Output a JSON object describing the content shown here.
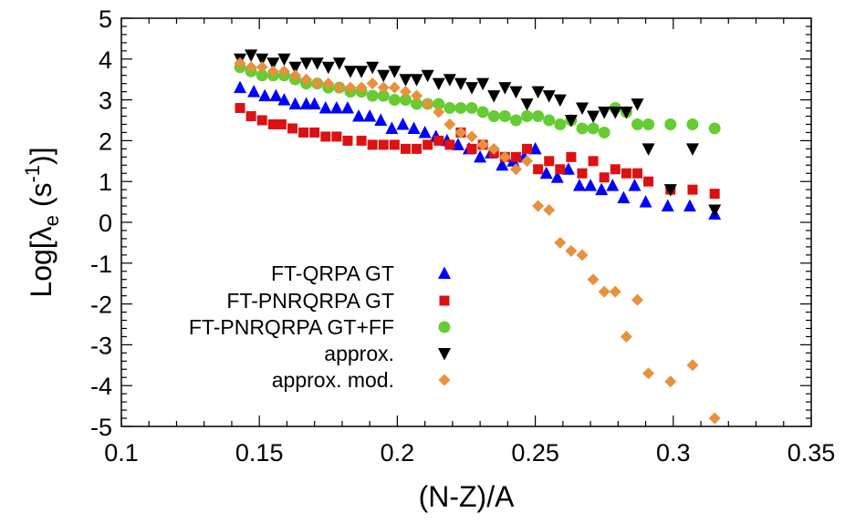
{
  "chart_data": {
    "type": "scatter",
    "title": "",
    "xlabel": "(N-Z)/A",
    "ylabel": "Log[λe (s-1)]",
    "ylabel_parts": {
      "prefix": "Log[",
      "symbol": "λ",
      "sub": "e",
      "mid": " (s",
      "sup": "-1",
      "suffix": ")]"
    },
    "xlim": [
      0.1,
      0.35
    ],
    "ylim": [
      -5,
      5
    ],
    "xticks": [
      "0.1",
      "0.15",
      "0.2",
      "0.25",
      "0.3",
      "0.35"
    ],
    "yticks": [
      "5",
      "4",
      "3",
      "2",
      "1",
      "0",
      "-1",
      "-2",
      "-3",
      "-4",
      "-5"
    ],
    "xtick_values": [
      0.1,
      0.15,
      0.2,
      0.25,
      0.3,
      0.35
    ],
    "ytick_values": [
      5,
      4,
      3,
      2,
      1,
      0,
      -1,
      -2,
      -3,
      -4,
      -5
    ],
    "legend_position": "lower-left",
    "series": [
      {
        "name": "FT-QRPA GT",
        "marker": "triangle-up",
        "color": "#0000ff",
        "x": [
          0.143,
          0.148,
          0.152,
          0.156,
          0.159,
          0.163,
          0.167,
          0.17,
          0.174,
          0.178,
          0.182,
          0.186,
          0.19,
          0.194,
          0.198,
          0.202,
          0.206,
          0.21,
          0.214,
          0.218,
          0.222,
          0.226,
          0.23,
          0.234,
          0.238,
          0.242,
          0.246,
          0.25,
          0.254,
          0.258,
          0.262,
          0.266,
          0.27,
          0.274,
          0.278,
          0.282,
          0.286,
          0.29,
          0.298,
          0.306,
          0.315
        ],
        "y": [
          3.3,
          3.2,
          3.1,
          3.1,
          3.0,
          2.9,
          2.9,
          2.9,
          2.8,
          2.8,
          2.8,
          2.6,
          2.6,
          2.5,
          2.3,
          2.4,
          2.3,
          2.2,
          2.1,
          2.0,
          1.9,
          1.8,
          1.6,
          1.7,
          1.4,
          1.5,
          1.6,
          1.8,
          1.2,
          1.1,
          1.3,
          0.9,
          0.9,
          0.8,
          0.9,
          0.6,
          0.9,
          0.5,
          0.4,
          0.4,
          0.2
        ]
      },
      {
        "name": "FT-PNRQRPA GT",
        "marker": "square",
        "color": "#dd1111",
        "x": [
          0.143,
          0.147,
          0.151,
          0.155,
          0.158,
          0.162,
          0.166,
          0.17,
          0.174,
          0.178,
          0.182,
          0.187,
          0.191,
          0.195,
          0.199,
          0.203,
          0.207,
          0.211,
          0.215,
          0.219,
          0.223,
          0.227,
          0.231,
          0.235,
          0.239,
          0.243,
          0.247,
          0.251,
          0.255,
          0.259,
          0.263,
          0.267,
          0.271,
          0.275,
          0.279,
          0.283,
          0.287,
          0.291,
          0.299,
          0.307,
          0.315
        ],
        "y": [
          2.8,
          2.6,
          2.5,
          2.4,
          2.4,
          2.3,
          2.2,
          2.2,
          2.1,
          2.1,
          2.0,
          2.0,
          1.9,
          1.9,
          1.9,
          1.8,
          1.8,
          1.9,
          2.0,
          1.9,
          2.2,
          1.8,
          1.9,
          1.7,
          1.6,
          1.6,
          1.8,
          1.3,
          1.5,
          1.3,
          1.6,
          1.2,
          1.5,
          1.1,
          1.3,
          1.2,
          1.2,
          1.0,
          0.8,
          0.8,
          0.7
        ]
      },
      {
        "name": "FT-PNRQRPA GT+FF",
        "marker": "circle",
        "color": "#66cc33",
        "x": [
          0.143,
          0.147,
          0.151,
          0.155,
          0.159,
          0.163,
          0.167,
          0.171,
          0.175,
          0.179,
          0.183,
          0.187,
          0.191,
          0.195,
          0.199,
          0.203,
          0.207,
          0.211,
          0.215,
          0.219,
          0.223,
          0.227,
          0.231,
          0.235,
          0.239,
          0.243,
          0.247,
          0.251,
          0.255,
          0.259,
          0.263,
          0.267,
          0.271,
          0.275,
          0.279,
          0.283,
          0.287,
          0.291,
          0.299,
          0.307,
          0.315
        ],
        "y": [
          3.8,
          3.7,
          3.6,
          3.6,
          3.6,
          3.5,
          3.4,
          3.4,
          3.3,
          3.3,
          3.2,
          3.2,
          3.1,
          3.1,
          3.0,
          3.0,
          2.9,
          2.9,
          2.9,
          2.8,
          2.8,
          2.8,
          2.7,
          2.6,
          2.6,
          2.5,
          2.6,
          2.6,
          2.5,
          2.4,
          2.5,
          2.3,
          2.3,
          2.2,
          2.8,
          2.7,
          2.4,
          2.4,
          2.4,
          2.4,
          2.3
        ]
      },
      {
        "name": "approx.",
        "marker": "triangle-down",
        "color": "#000000",
        "x": [
          0.143,
          0.147,
          0.151,
          0.155,
          0.159,
          0.163,
          0.167,
          0.171,
          0.175,
          0.179,
          0.183,
          0.187,
          0.191,
          0.195,
          0.199,
          0.203,
          0.207,
          0.211,
          0.215,
          0.219,
          0.223,
          0.227,
          0.231,
          0.235,
          0.239,
          0.243,
          0.247,
          0.251,
          0.255,
          0.259,
          0.263,
          0.267,
          0.271,
          0.275,
          0.279,
          0.283,
          0.287,
          0.291,
          0.299,
          0.307,
          0.315
        ],
        "y": [
          4.0,
          4.1,
          4.0,
          3.9,
          4.0,
          3.8,
          3.9,
          3.9,
          3.8,
          3.9,
          3.7,
          3.7,
          3.8,
          3.6,
          3.7,
          3.5,
          3.5,
          3.6,
          3.4,
          3.5,
          3.4,
          3.3,
          3.4,
          3.1,
          3.3,
          3.2,
          2.9,
          3.2,
          3.1,
          3.0,
          2.5,
          2.8,
          2.6,
          2.7,
          2.7,
          2.7,
          2.9,
          1.8,
          0.8,
          1.8,
          0.3
        ]
      },
      {
        "name": "approx. mod.",
        "marker": "diamond",
        "color": "#e8913d",
        "x": [
          0.143,
          0.147,
          0.151,
          0.155,
          0.159,
          0.163,
          0.167,
          0.171,
          0.175,
          0.179,
          0.183,
          0.187,
          0.191,
          0.195,
          0.199,
          0.203,
          0.207,
          0.211,
          0.215,
          0.219,
          0.223,
          0.227,
          0.231,
          0.235,
          0.239,
          0.243,
          0.247,
          0.251,
          0.255,
          0.259,
          0.263,
          0.267,
          0.271,
          0.275,
          0.279,
          0.283,
          0.287,
          0.291,
          0.299,
          0.307,
          0.315
        ],
        "y": [
          3.9,
          3.8,
          3.8,
          3.7,
          3.7,
          3.6,
          3.5,
          3.4,
          3.4,
          3.3,
          3.3,
          3.3,
          3.4,
          3.3,
          3.3,
          3.2,
          3.1,
          2.9,
          2.7,
          2.4,
          2.2,
          2.1,
          1.9,
          1.8,
          1.6,
          1.3,
          1.5,
          0.4,
          0.3,
          -0.5,
          -0.7,
          -0.8,
          -1.4,
          -1.7,
          -1.7,
          -2.8,
          -1.9,
          -3.7,
          -3.9,
          -3.5,
          -4.8
        ]
      }
    ]
  }
}
